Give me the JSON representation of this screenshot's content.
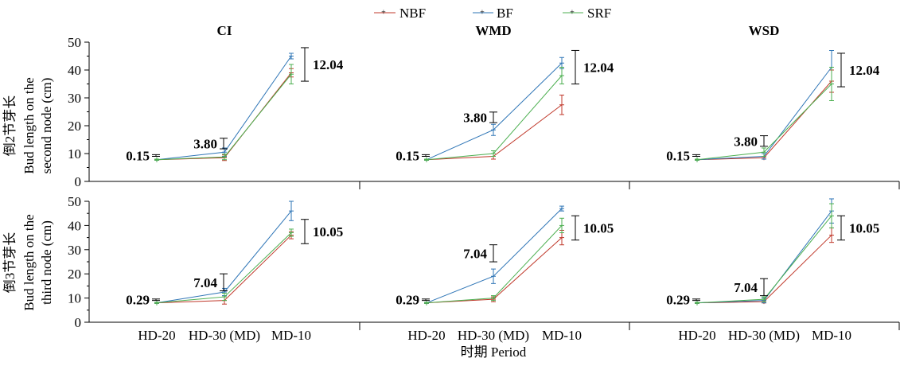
{
  "legend": {
    "items": [
      {
        "label": "NBF",
        "color": "#c0392b"
      },
      {
        "label": "BF",
        "color": "#2e75b6"
      },
      {
        "label": "SRF",
        "color": "#4caf50"
      }
    ],
    "placement": "top-center"
  },
  "panel_titles": [
    "CI",
    "WMD",
    "WSD"
  ],
  "row_labels": [
    {
      "cn": "倒2节芽长",
      "en1": "Bud length on the",
      "en2": "second node (cm)"
    },
    {
      "cn": "倒3节芽长",
      "en1": "Bud length on the",
      "en2": "third node (cm)"
    }
  ],
  "xlabel": "时期 Period",
  "chart_data": {
    "type": "line",
    "categories": [
      "HD-20",
      "HD-30 (MD)",
      "MD-10"
    ],
    "yticks": [
      0,
      10,
      20,
      30,
      40,
      50
    ],
    "ylim": [
      0,
      50
    ],
    "grid": false,
    "panels": [
      {
        "row": 0,
        "col": 0,
        "title": "CI",
        "series": [
          {
            "name": "NBF",
            "values": [
              7.8,
              8.5,
              39.0
            ],
            "errors": [
              0.2,
              1.0,
              1.5
            ]
          },
          {
            "name": "BF",
            "values": [
              7.8,
              10.5,
              45.0
            ],
            "errors": [
              0.2,
              1.5,
              1.0
            ]
          },
          {
            "name": "SRF",
            "values": [
              7.8,
              8.8,
              38.5
            ],
            "errors": [
              0.2,
              1.0,
              3.5
            ]
          }
        ],
        "lsd": [
          {
            "label": "0.15",
            "value": 0.15,
            "center": 9.3
          },
          {
            "label": "3.80",
            "value": 3.8,
            "center": 13.6
          },
          {
            "label": "12.04",
            "value": 12.04,
            "center": 42.0
          }
        ]
      },
      {
        "row": 0,
        "col": 1,
        "title": "WMD",
        "series": [
          {
            "name": "NBF",
            "values": [
              7.8,
              9.0,
              27.5
            ],
            "errors": [
              0.2,
              1.0,
              3.5
            ]
          },
          {
            "name": "BF",
            "values": [
              7.8,
              18.5,
              42.5
            ],
            "errors": [
              0.2,
              2.0,
              2.0
            ]
          },
          {
            "name": "SRF",
            "values": [
              7.8,
              10.0,
              38.0
            ],
            "errors": [
              0.2,
              1.0,
              3.0
            ]
          }
        ],
        "lsd": [
          {
            "label": "0.15",
            "value": 0.15,
            "center": 9.3
          },
          {
            "label": "3.80",
            "value": 3.8,
            "center": 23.0
          },
          {
            "label": "12.04",
            "value": 12.04,
            "center": 41.0
          }
        ]
      },
      {
        "row": 0,
        "col": 2,
        "title": "WSD",
        "series": [
          {
            "name": "NBF",
            "values": [
              7.8,
              8.5,
              36.0
            ],
            "errors": [
              0.2,
              0.5,
              4.0
            ]
          },
          {
            "name": "BF",
            "values": [
              7.8,
              9.0,
              41.0
            ],
            "errors": [
              0.2,
              1.0,
              6.0
            ]
          },
          {
            "name": "SRF",
            "values": [
              7.8,
              10.5,
              35.0
            ],
            "errors": [
              0.2,
              1.5,
              6.0
            ]
          }
        ],
        "lsd": [
          {
            "label": "0.15",
            "value": 0.15,
            "center": 9.3
          },
          {
            "label": "3.80",
            "value": 3.8,
            "center": 14.5
          },
          {
            "label": "12.04",
            "value": 12.04,
            "center": 40.0
          }
        ]
      },
      {
        "row": 1,
        "col": 0,
        "title": "",
        "series": [
          {
            "name": "NBF",
            "values": [
              8.0,
              9.0,
              36.0
            ],
            "errors": [
              0.2,
              1.5,
              1.5
            ]
          },
          {
            "name": "BF",
            "values": [
              8.0,
              12.5,
              46.0
            ],
            "errors": [
              0.2,
              1.5,
              4.0
            ]
          },
          {
            "name": "SRF",
            "values": [
              8.0,
              10.5,
              37.0
            ],
            "errors": [
              0.2,
              1.5,
              1.5
            ]
          }
        ],
        "lsd": [
          {
            "label": "0.29",
            "value": 0.29,
            "center": 9.3
          },
          {
            "label": "7.04",
            "value": 7.04,
            "center": 16.5
          },
          {
            "label": "10.05",
            "value": 10.05,
            "center": 37.5
          }
        ]
      },
      {
        "row": 1,
        "col": 1,
        "title": "",
        "series": [
          {
            "name": "NBF",
            "values": [
              8.0,
              9.5,
              35.0
            ],
            "errors": [
              0.2,
              1.0,
              3.0
            ]
          },
          {
            "name": "BF",
            "values": [
              8.0,
              19.0,
              47.0
            ],
            "errors": [
              0.2,
              3.0,
              1.0
            ]
          },
          {
            "name": "SRF",
            "values": [
              8.0,
              10.0,
              40.0
            ],
            "errors": [
              0.2,
              1.0,
              3.0
            ]
          }
        ],
        "lsd": [
          {
            "label": "0.29",
            "value": 0.29,
            "center": 9.3
          },
          {
            "label": "7.04",
            "value": 7.04,
            "center": 28.5
          },
          {
            "label": "10.05",
            "value": 10.05,
            "center": 39.0
          }
        ]
      },
      {
        "row": 1,
        "col": 2,
        "title": "",
        "series": [
          {
            "name": "NBF",
            "values": [
              8.0,
              8.5,
              36.0
            ],
            "errors": [
              0.2,
              0.5,
              3.0
            ]
          },
          {
            "name": "BF",
            "values": [
              8.0,
              9.0,
              46.0
            ],
            "errors": [
              0.2,
              1.0,
              5.0
            ]
          },
          {
            "name": "SRF",
            "values": [
              8.0,
              9.5,
              44.0
            ],
            "errors": [
              0.2,
              1.0,
              5.0
            ]
          }
        ],
        "lsd": [
          {
            "label": "0.29",
            "value": 0.29,
            "center": 9.3
          },
          {
            "label": "7.04",
            "value": 7.04,
            "center": 14.5
          },
          {
            "label": "10.05",
            "value": 10.05,
            "center": 39.0
          }
        ]
      }
    ]
  }
}
